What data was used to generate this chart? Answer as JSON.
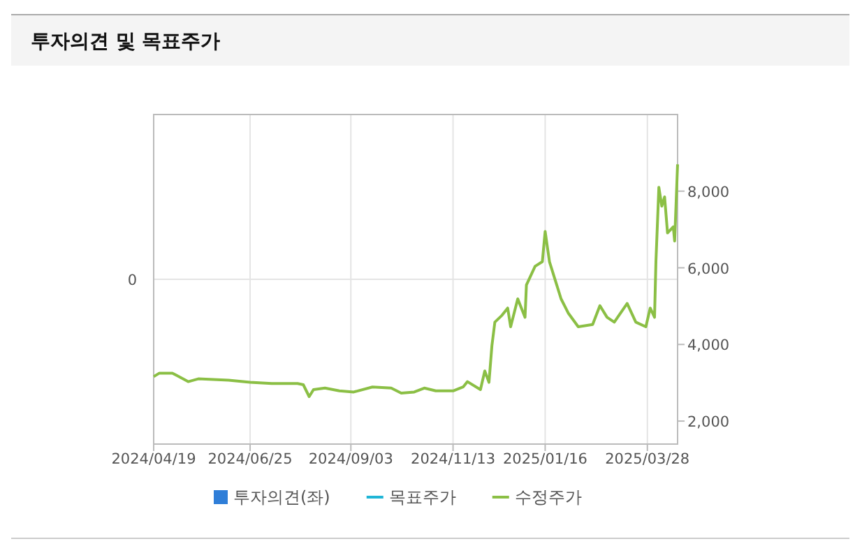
{
  "chart_data": {
    "type": "line",
    "title": "투자의견 및 목표주가",
    "xlim": [
      "2024-04-19",
      "2025-04-18"
    ],
    "xticks": [
      {
        "value": "2024-04-19",
        "label": "2024/04/19"
      },
      {
        "value": "2024-06-25",
        "label": "2024/06/25"
      },
      {
        "value": "2024-09-03",
        "label": "2024/09/03"
      },
      {
        "value": "2024-11-13",
        "label": "2024/11/13"
      },
      {
        "value": "2025-01-16",
        "label": "2025/01/16"
      },
      {
        "value": "2025-03-28",
        "label": "2025/03/28"
      }
    ],
    "annotations": [
      "0"
    ],
    "y2lim": [
      1400,
      10000
    ],
    "y2ticks": [
      {
        "value": 2000,
        "label": "2,000"
      },
      {
        "value": 4000,
        "label": "4,000"
      },
      {
        "value": 6000,
        "label": "6,000"
      },
      {
        "value": 8000,
        "label": "8,000"
      }
    ],
    "grid": true,
    "legend": "bottom",
    "series": [
      {
        "name": "투자의견(좌)",
        "type": "bar",
        "color": "#2f7ed8"
      },
      {
        "name": "목표주가",
        "type": "line",
        "color": "#1fb5d6"
      },
      {
        "name": "수정주가",
        "axis": "y2",
        "color": "#8bbf45",
        "x": [
          "2024-04-19",
          "2024-04-23",
          "2024-05-02",
          "2024-05-08",
          "2024-05-13",
          "2024-05-20",
          "2024-06-10",
          "2024-06-25",
          "2024-07-10",
          "2024-07-28",
          "2024-08-01",
          "2024-08-05",
          "2024-08-08",
          "2024-08-16",
          "2024-08-26",
          "2024-09-05",
          "2024-09-18",
          "2024-10-01",
          "2024-10-08",
          "2024-10-17",
          "2024-10-24",
          "2024-11-01",
          "2024-11-13",
          "2024-11-20",
          "2024-11-23",
          "2024-12-02",
          "2024-12-05",
          "2024-12-08",
          "2024-12-10",
          "2024-12-12",
          "2024-12-17",
          "2024-12-21",
          "2024-12-23",
          "2024-12-28",
          "2025-01-02",
          "2025-01-03",
          "2025-01-09",
          "2025-01-14",
          "2025-01-16",
          "2025-01-19",
          "2025-01-24",
          "2025-01-27",
          "2025-02-01",
          "2025-02-08",
          "2025-02-18",
          "2025-02-23",
          "2025-02-28",
          "2025-03-05",
          "2025-03-14",
          "2025-03-20",
          "2025-03-27",
          "2025-03-30",
          "2025-04-02",
          "2025-04-03",
          "2025-04-05",
          "2025-04-07",
          "2025-04-09",
          "2025-04-11",
          "2025-04-15",
          "2025-04-16",
          "2025-04-18"
        ],
        "values": [
          3160,
          3250,
          3250,
          3130,
          3030,
          3100,
          3070,
          3010,
          2980,
          2980,
          2950,
          2640,
          2820,
          2860,
          2790,
          2760,
          2890,
          2860,
          2730,
          2760,
          2860,
          2790,
          2790,
          2890,
          3030,
          2820,
          3310,
          3010,
          3970,
          4580,
          4760,
          4950,
          4460,
          5190,
          4710,
          5550,
          6040,
          6160,
          6950,
          6160,
          5550,
          5190,
          4820,
          4460,
          4520,
          5010,
          4710,
          4580,
          5070,
          4580,
          4460,
          4950,
          4710,
          6160,
          8100,
          7610,
          7850,
          6910,
          7070,
          6700,
          8700
        ]
      }
    ]
  }
}
